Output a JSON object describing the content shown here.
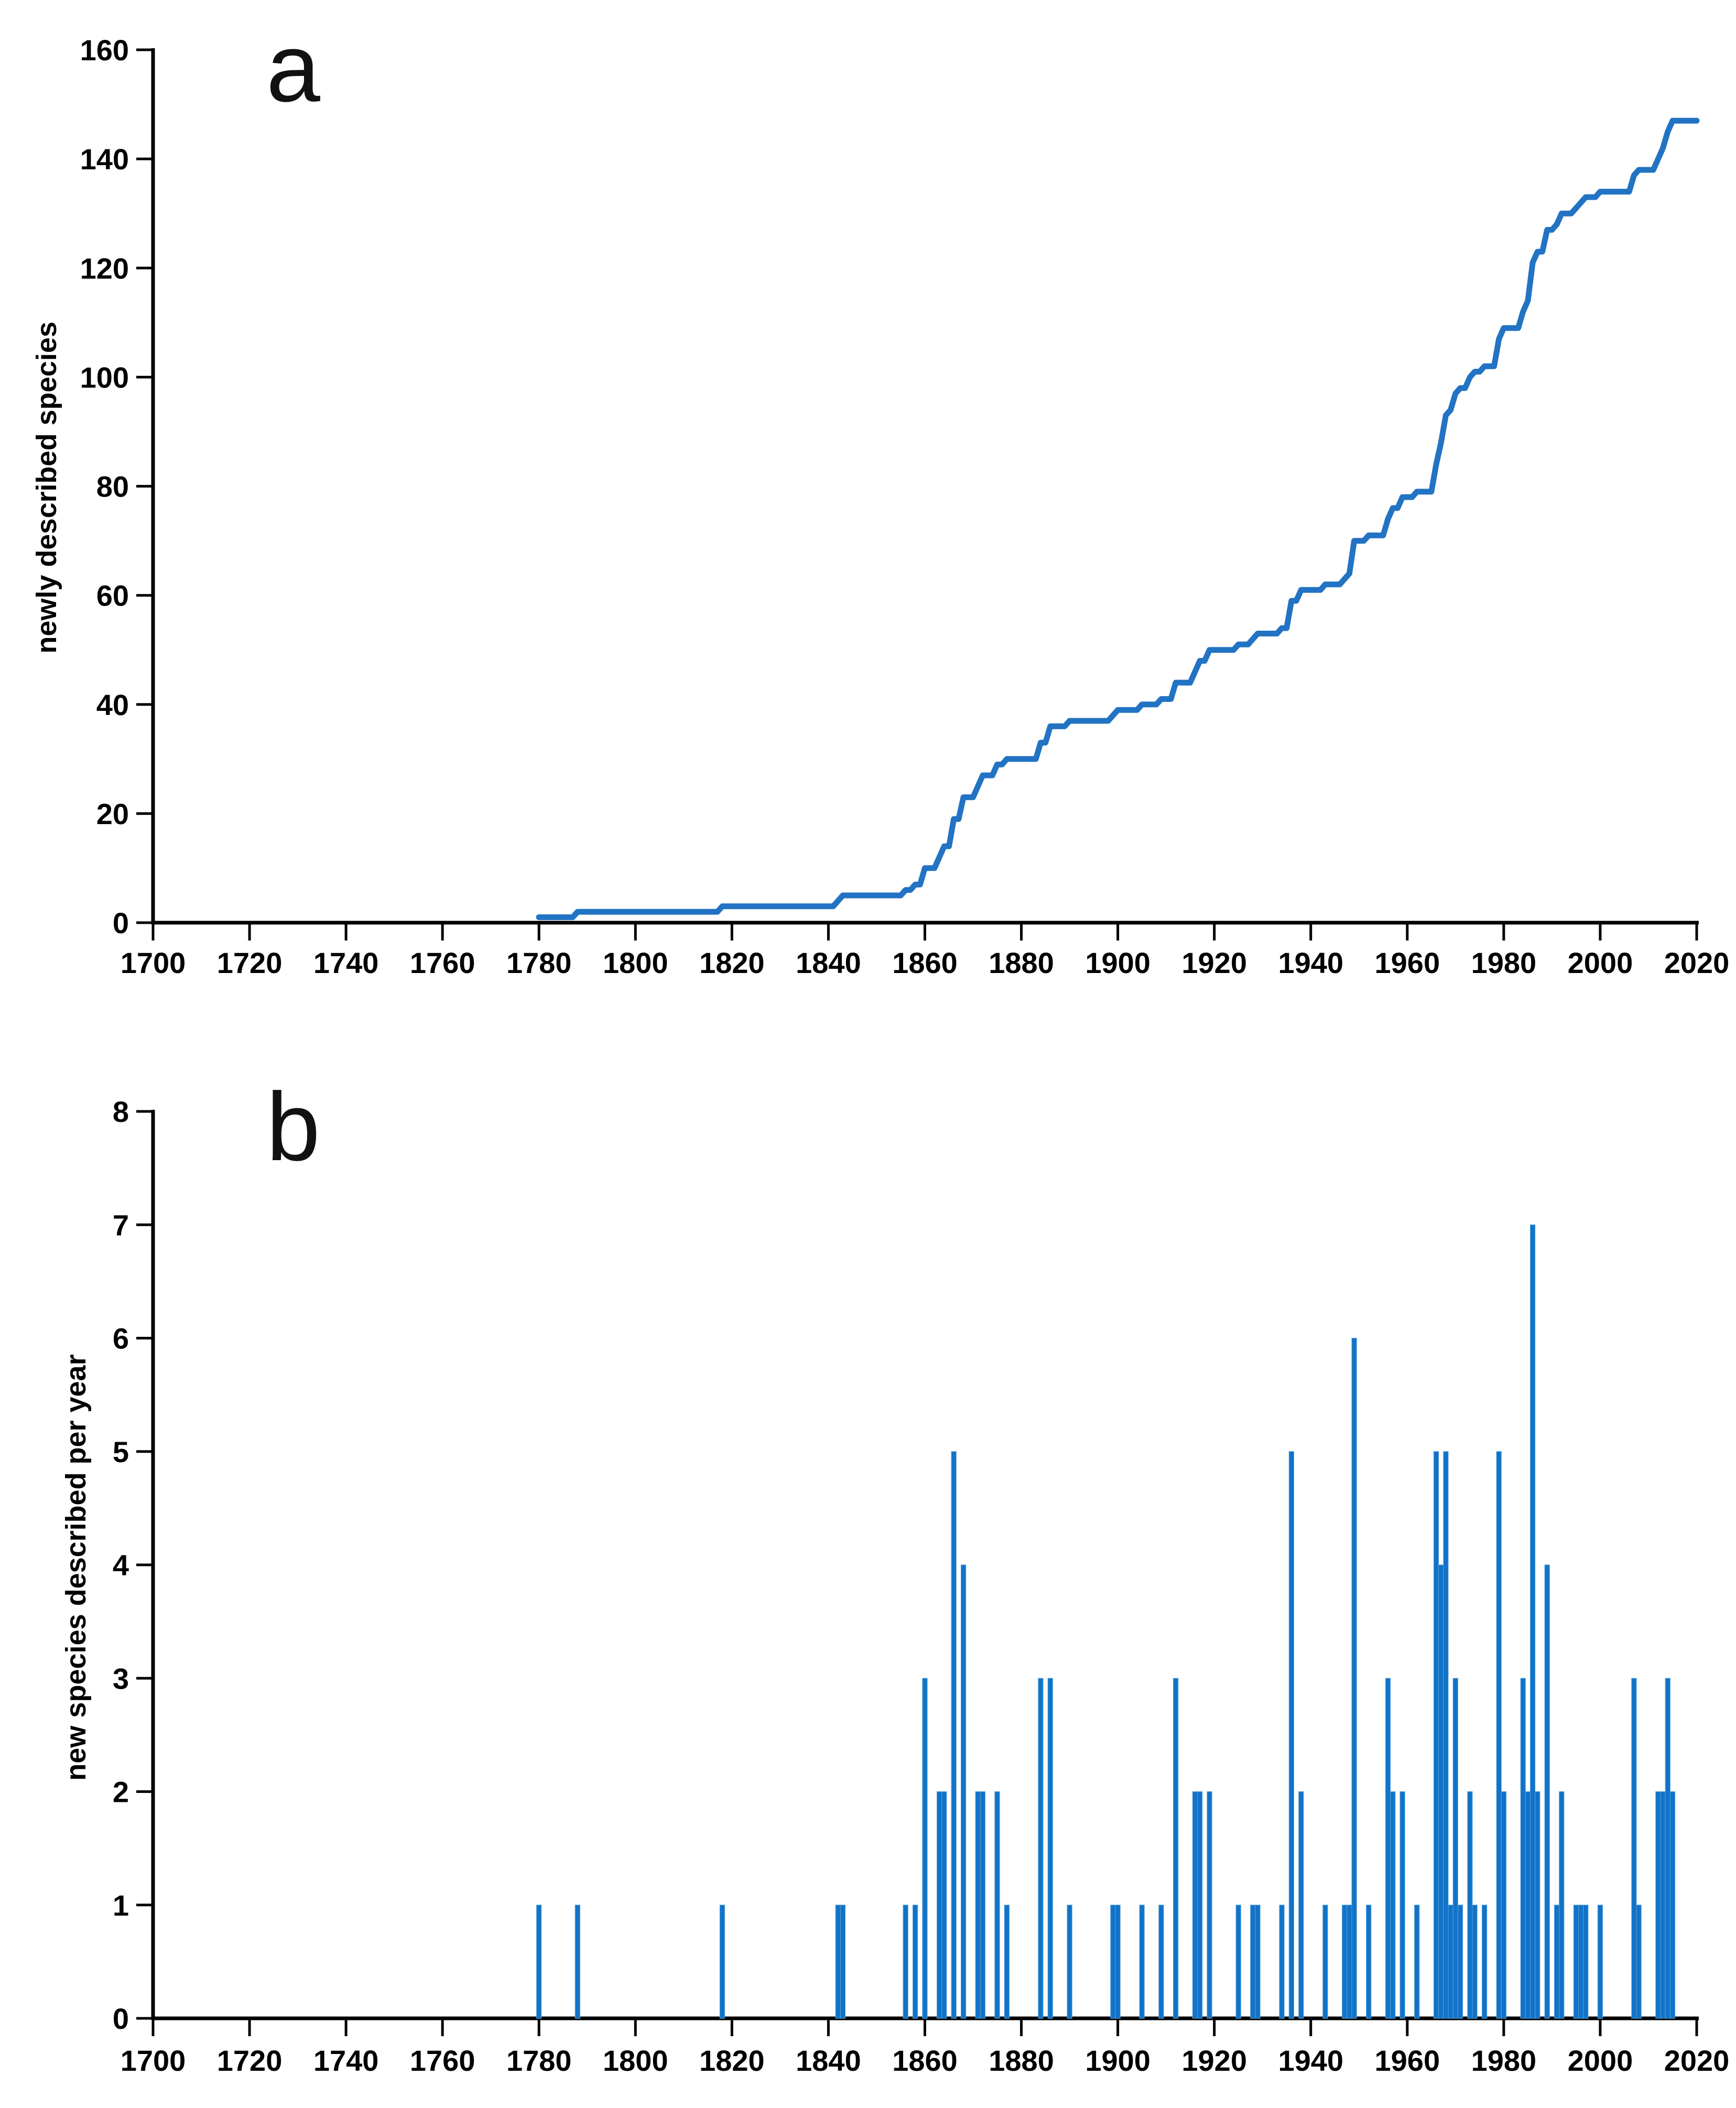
{
  "figure": {
    "background": "#ffffff",
    "axis_color": "#000000",
    "bar_color": "#1173c8",
    "bar_edge_color": "#55a0d9",
    "line_color": "#2273c3"
  },
  "panel_a": {
    "label": "a",
    "type": "line",
    "ylabel": "newly described species",
    "xlabel": "",
    "ylim": [
      0,
      160
    ],
    "xlim": [
      1700,
      2020
    ],
    "y_ticks": [
      0,
      20,
      40,
      60,
      80,
      100,
      120,
      140,
      160
    ],
    "x_ticks": [
      1700,
      1720,
      1740,
      1760,
      1780,
      1800,
      1820,
      1840,
      1860,
      1880,
      1900,
      1920,
      1940,
      1960,
      1980,
      2000,
      2020
    ]
  },
  "panel_b": {
    "label": "b",
    "type": "bar",
    "ylabel": "new species described per year",
    "xlabel": "",
    "ylim": [
      0,
      8
    ],
    "xlim": [
      1700,
      2020
    ],
    "y_ticks": [
      0,
      1,
      2,
      3,
      4,
      5,
      6,
      7,
      8
    ],
    "x_ticks": [
      1700,
      1720,
      1740,
      1760,
      1780,
      1800,
      1820,
      1840,
      1860,
      1880,
      1900,
      1920,
      1940,
      1960,
      1980,
      2000,
      2020
    ]
  },
  "chart_data": [
    {
      "type": "line",
      "panel": "a",
      "title": "cumulative number of newly described species (step curve)",
      "line_start_year": 1780,
      "line_end_year": 2020,
      "x": [
        1780,
        1788,
        1818,
        1842,
        1843,
        1856,
        1858,
        1860,
        1863,
        1864,
        1866,
        1868,
        1871,
        1872,
        1875,
        1877,
        1884,
        1886,
        1890,
        1899,
        1900,
        1905,
        1909,
        1912,
        1916,
        1917,
        1919,
        1925,
        1928,
        1929,
        1934,
        1936,
        1938,
        1943,
        1947,
        1948,
        1949,
        1952,
        1956,
        1957,
        1959,
        1962,
        1966,
        1967,
        1968,
        1969,
        1970,
        1971,
        1973,
        1974,
        1976,
        1979,
        1980,
        1984,
        1985,
        1986,
        1987,
        1989,
        1991,
        1992,
        1995,
        1996,
        1997,
        2000,
        2007,
        2008,
        2012,
        2013,
        2014,
        2015
      ],
      "y": [
        1,
        2,
        3,
        4,
        5,
        6,
        7,
        10,
        12,
        14,
        19,
        23,
        25,
        27,
        29,
        30,
        33,
        36,
        37,
        38,
        39,
        40,
        41,
        44,
        46,
        48,
        50,
        51,
        52,
        53,
        54,
        59,
        61,
        62,
        63,
        64,
        70,
        71,
        74,
        76,
        78,
        79,
        84,
        88,
        93,
        94,
        97,
        98,
        100,
        101,
        102,
        107,
        109,
        112,
        114,
        121,
        123,
        127,
        128,
        130,
        131,
        132,
        133,
        134,
        137,
        138,
        140,
        142,
        145,
        147
      ],
      "final_value": 147
    },
    {
      "type": "bar",
      "panel": "b",
      "title": "new species described per year",
      "years": [
        1780,
        1788,
        1818,
        1842,
        1843,
        1856,
        1858,
        1860,
        1863,
        1864,
        1866,
        1868,
        1871,
        1872,
        1875,
        1877,
        1884,
        1886,
        1890,
        1899,
        1900,
        1905,
        1909,
        1912,
        1916,
        1917,
        1919,
        1925,
        1928,
        1929,
        1934,
        1936,
        1938,
        1943,
        1947,
        1948,
        1949,
        1952,
        1956,
        1957,
        1959,
        1962,
        1966,
        1967,
        1968,
        1969,
        1970,
        1971,
        1973,
        1974,
        1976,
        1979,
        1980,
        1984,
        1985,
        1986,
        1987,
        1989,
        1991,
        1992,
        1995,
        1996,
        1997,
        2000,
        2007,
        2008,
        2012,
        2013,
        2014,
        2015
      ],
      "values": [
        1,
        1,
        1,
        1,
        1,
        1,
        1,
        3,
        2,
        2,
        5,
        4,
        2,
        2,
        2,
        1,
        3,
        3,
        1,
        1,
        1,
        1,
        1,
        3,
        2,
        2,
        2,
        1,
        1,
        1,
        1,
        5,
        2,
        1,
        1,
        1,
        6,
        1,
        3,
        2,
        2,
        1,
        5,
        4,
        5,
        1,
        3,
        1,
        2,
        1,
        1,
        5,
        2,
        3,
        2,
        7,
        2,
        4,
        1,
        2,
        1,
        1,
        1,
        1,
        3,
        1,
        2,
        2,
        3,
        2
      ],
      "max_bar_value": 7
    }
  ]
}
